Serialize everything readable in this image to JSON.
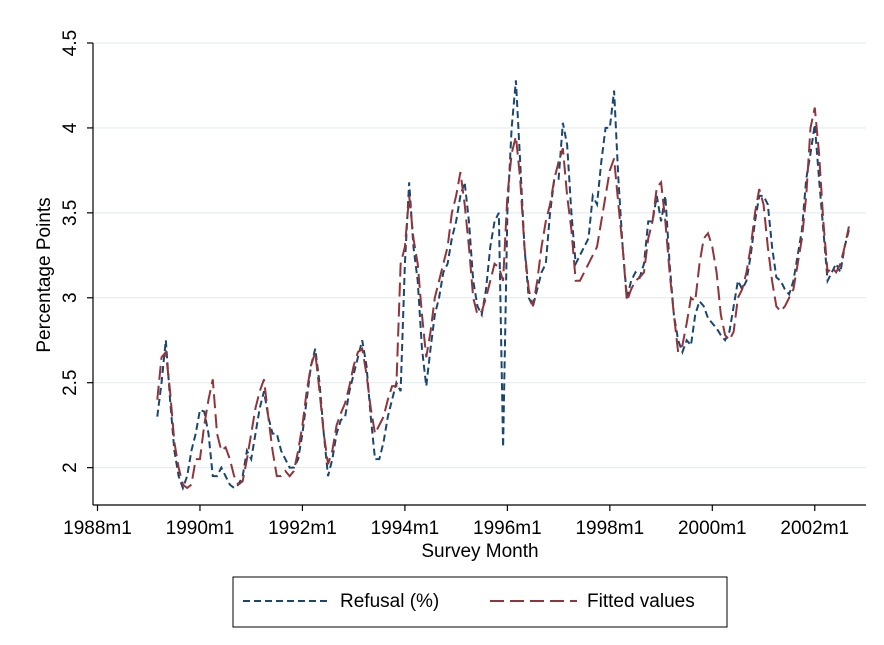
{
  "chart_data": {
    "type": "line",
    "x_label": "Survey Month",
    "y_label": "Percentage Points",
    "xlim": [
      "1988m1",
      "2003m1"
    ],
    "xticks": [
      "1988m1",
      "1990m1",
      "1992m1",
      "1994m1",
      "1996m1",
      "1998m1",
      "2000m1",
      "2002m1"
    ],
    "ylim": [
      1.78,
      4.5
    ],
    "yticks": [
      2,
      2.5,
      3,
      3.5,
      4,
      4.5
    ],
    "grid": true,
    "legend": "bottom",
    "x": [
      "1989m3",
      "1989m4",
      "1989m5",
      "1989m6",
      "1989m7",
      "1989m8",
      "1989m9",
      "1989m10",
      "1989m11",
      "1989m12",
      "1990m1",
      "1990m2",
      "1990m3",
      "1990m4",
      "1990m5",
      "1990m6",
      "1990m7",
      "1990m8",
      "1990m9",
      "1990m10",
      "1990m11",
      "1990m12",
      "1991m1",
      "1991m2",
      "1991m3",
      "1991m4",
      "1991m5",
      "1991m6",
      "1991m7",
      "1991m8",
      "1991m9",
      "1991m10",
      "1991m11",
      "1991m12",
      "1992m1",
      "1992m2",
      "1992m3",
      "1992m4",
      "1992m5",
      "1992m6",
      "1992m7",
      "1992m8",
      "1992m9",
      "1992m10",
      "1992m11",
      "1992m12",
      "1993m1",
      "1993m2",
      "1993m3",
      "1993m4",
      "1993m5",
      "1993m6",
      "1993m7",
      "1993m8",
      "1993m9",
      "1993m10",
      "1993m11",
      "1993m12",
      "1994m1",
      "1994m2",
      "1994m3",
      "1994m4",
      "1994m5",
      "1994m6",
      "1994m7",
      "1994m8",
      "1994m9",
      "1994m10",
      "1994m11",
      "1994m12",
      "1995m1",
      "1995m2",
      "1995m3",
      "1995m4",
      "1995m5",
      "1995m6",
      "1995m7",
      "1995m8",
      "1995m9",
      "1995m10",
      "1995m11",
      "1995m12",
      "1996m1",
      "1996m2",
      "1996m3",
      "1996m4",
      "1996m5",
      "1996m6",
      "1996m7",
      "1996m8",
      "1996m9",
      "1996m10",
      "1996m11",
      "1996m12",
      "1997m1",
      "1997m2",
      "1997m3",
      "1997m4",
      "1997m5",
      "1997m6",
      "1997m7",
      "1997m8",
      "1997m9",
      "1997m10",
      "1997m11",
      "1997m12",
      "1998m1",
      "1998m2",
      "1998m3",
      "1998m4",
      "1998m5",
      "1998m6",
      "1998m7",
      "1998m8",
      "1998m9",
      "1998m10",
      "1998m11",
      "1998m12",
      "1999m1",
      "1999m2",
      "1999m3",
      "1999m4",
      "1999m5",
      "1999m6",
      "1999m7",
      "1999m8",
      "1999m9",
      "1999m10",
      "1999m11",
      "1999m12",
      "2000m1",
      "2000m2",
      "2000m3",
      "2000m4",
      "2000m5",
      "2000m6",
      "2000m7",
      "2000m8",
      "2000m9",
      "2000m10",
      "2000m11",
      "2000m12",
      "2001m1",
      "2001m2",
      "2001m3",
      "2001m4",
      "2001m5",
      "2001m6",
      "2001m7",
      "2001m8",
      "2001m9",
      "2001m10",
      "2001m11",
      "2001m12",
      "2002m1",
      "2002m2",
      "2002m3",
      "2002m4",
      "2002m5",
      "2002m6",
      "2002m7",
      "2002m8",
      "2002m9"
    ],
    "series": [
      {
        "name": "Refusal (%)",
        "color": "#1a476f",
        "dash": "7 4",
        "values": [
          2.3,
          2.5,
          2.75,
          2.4,
          2.1,
          1.95,
          1.88,
          1.95,
          2.1,
          2.2,
          2.34,
          2.33,
          2.2,
          1.95,
          1.95,
          2.0,
          1.95,
          1.9,
          1.88,
          1.9,
          1.95,
          2.1,
          2.05,
          2.2,
          2.35,
          2.45,
          2.3,
          2.2,
          2.2,
          2.1,
          2.05,
          2.0,
          2.0,
          2.05,
          2.2,
          2.4,
          2.6,
          2.7,
          2.5,
          2.2,
          1.95,
          2.05,
          2.2,
          2.28,
          2.3,
          2.45,
          2.55,
          2.65,
          2.75,
          2.6,
          2.3,
          2.05,
          2.05,
          2.15,
          2.3,
          2.4,
          2.5,
          2.45,
          3.2,
          3.68,
          3.3,
          3.1,
          2.7,
          2.48,
          2.7,
          2.9,
          3.0,
          3.15,
          3.2,
          3.35,
          3.45,
          3.6,
          3.68,
          3.45,
          3.1,
          2.95,
          2.9,
          3.05,
          3.3,
          3.45,
          3.5,
          2.12,
          3.5,
          4.0,
          4.28,
          3.8,
          3.3,
          3.0,
          2.95,
          3.05,
          3.15,
          3.2,
          3.5,
          3.7,
          3.7,
          4.03,
          3.9,
          3.5,
          3.2,
          3.25,
          3.3,
          3.35,
          3.6,
          3.55,
          3.8,
          4.0,
          4.0,
          4.22,
          3.7,
          3.3,
          3.0,
          3.1,
          3.15,
          3.12,
          3.2,
          3.45,
          3.45,
          3.6,
          3.45,
          3.6,
          3.2,
          2.9,
          2.75,
          2.68,
          2.75,
          2.72,
          2.9,
          2.98,
          2.95,
          2.88,
          2.85,
          2.82,
          2.78,
          2.75,
          2.8,
          2.95,
          3.1,
          3.05,
          3.1,
          3.25,
          3.45,
          3.6,
          3.6,
          3.55,
          3.3,
          3.12,
          3.1,
          3.05,
          3.02,
          3.1,
          3.25,
          3.4,
          3.7,
          3.85,
          4.02,
          3.7,
          3.4,
          3.1,
          3.15,
          3.2,
          3.15,
          3.3,
          3.4
        ]
      },
      {
        "name": "Fitted values",
        "color": "#90353b",
        "dash": "14 6",
        "values": [
          2.4,
          2.65,
          2.68,
          2.45,
          2.15,
          2.0,
          1.9,
          1.88,
          1.9,
          2.05,
          2.05,
          2.25,
          2.4,
          2.52,
          2.2,
          2.1,
          2.12,
          2.05,
          1.95,
          1.9,
          1.92,
          2.05,
          2.2,
          2.35,
          2.45,
          2.52,
          2.3,
          2.1,
          1.95,
          1.95,
          1.98,
          1.95,
          1.98,
          2.1,
          2.25,
          2.45,
          2.6,
          2.68,
          2.45,
          2.2,
          2.02,
          2.1,
          2.25,
          2.32,
          2.38,
          2.48,
          2.6,
          2.68,
          2.7,
          2.55,
          2.35,
          2.2,
          2.25,
          2.3,
          2.4,
          2.48,
          2.48,
          3.2,
          3.3,
          3.6,
          3.35,
          3.2,
          2.9,
          2.65,
          2.8,
          3.0,
          3.1,
          3.2,
          3.3,
          3.5,
          3.6,
          3.74,
          3.55,
          3.3,
          3.0,
          2.9,
          2.92,
          3.0,
          3.1,
          3.2,
          3.18,
          3.1,
          3.6,
          3.85,
          3.95,
          3.7,
          3.3,
          3.05,
          2.95,
          3.1,
          3.3,
          3.45,
          3.55,
          3.7,
          3.8,
          3.88,
          3.6,
          3.4,
          3.1,
          3.1,
          3.15,
          3.2,
          3.25,
          3.3,
          3.45,
          3.6,
          3.75,
          3.82,
          3.55,
          3.3,
          2.98,
          3.05,
          3.1,
          3.12,
          3.15,
          3.35,
          3.45,
          3.65,
          3.68,
          3.45,
          3.15,
          2.9,
          2.68,
          2.72,
          2.85,
          3.0,
          2.98,
          3.2,
          3.35,
          3.38,
          3.3,
          3.15,
          2.9,
          2.78,
          2.75,
          2.8,
          3.0,
          3.05,
          3.15,
          3.3,
          3.5,
          3.64,
          3.55,
          3.3,
          3.1,
          2.95,
          2.92,
          2.95,
          3.0,
          3.05,
          3.2,
          3.35,
          3.6,
          4.0,
          4.12,
          3.85,
          3.45,
          3.15,
          3.18,
          3.15,
          3.2,
          3.3,
          3.42
        ]
      }
    ]
  }
}
